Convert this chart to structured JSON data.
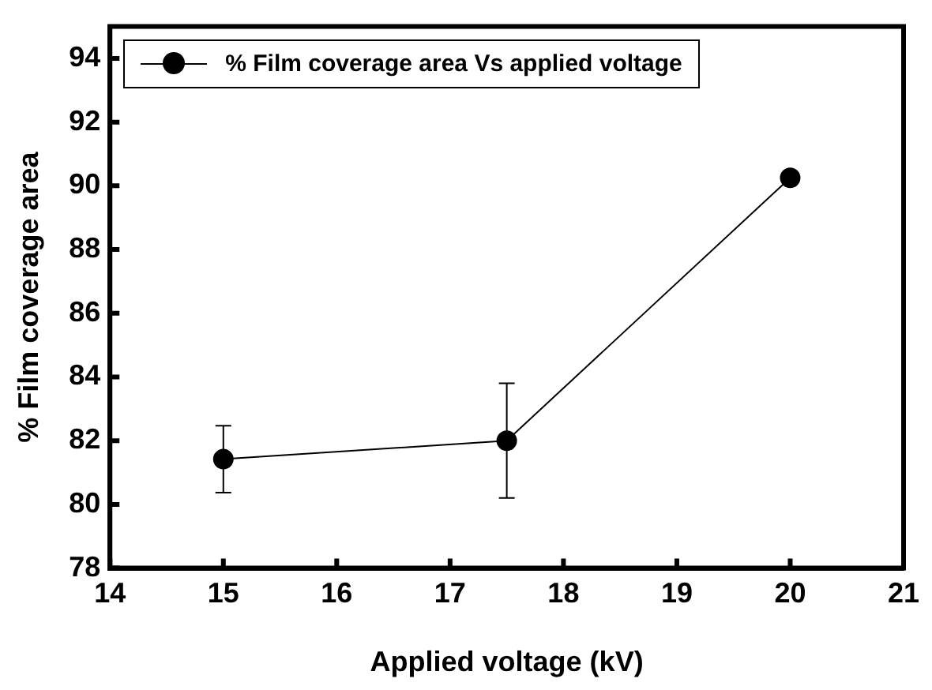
{
  "chart_data": {
    "type": "line",
    "xlabel": "Applied voltage (kV)",
    "ylabel": "% Film coverage area",
    "x": [
      15,
      17.5,
      20
    ],
    "series": [
      {
        "name": "% Film coverage area Vs applied voltage",
        "color": "#000000",
        "values": [
          81.42,
          82.0,
          90.25
        ],
        "errors": [
          1.05,
          1.8,
          null
        ]
      }
    ],
    "xlim": [
      14,
      21
    ],
    "xticks": [
      14,
      15,
      16,
      17,
      18,
      19,
      20,
      21
    ],
    "ylim": [
      78,
      95
    ],
    "yticks": [
      78,
      80,
      82,
      84,
      86,
      88,
      90,
      92,
      94
    ],
    "legend": "top left",
    "marker": "circle",
    "line_style": "solid"
  }
}
